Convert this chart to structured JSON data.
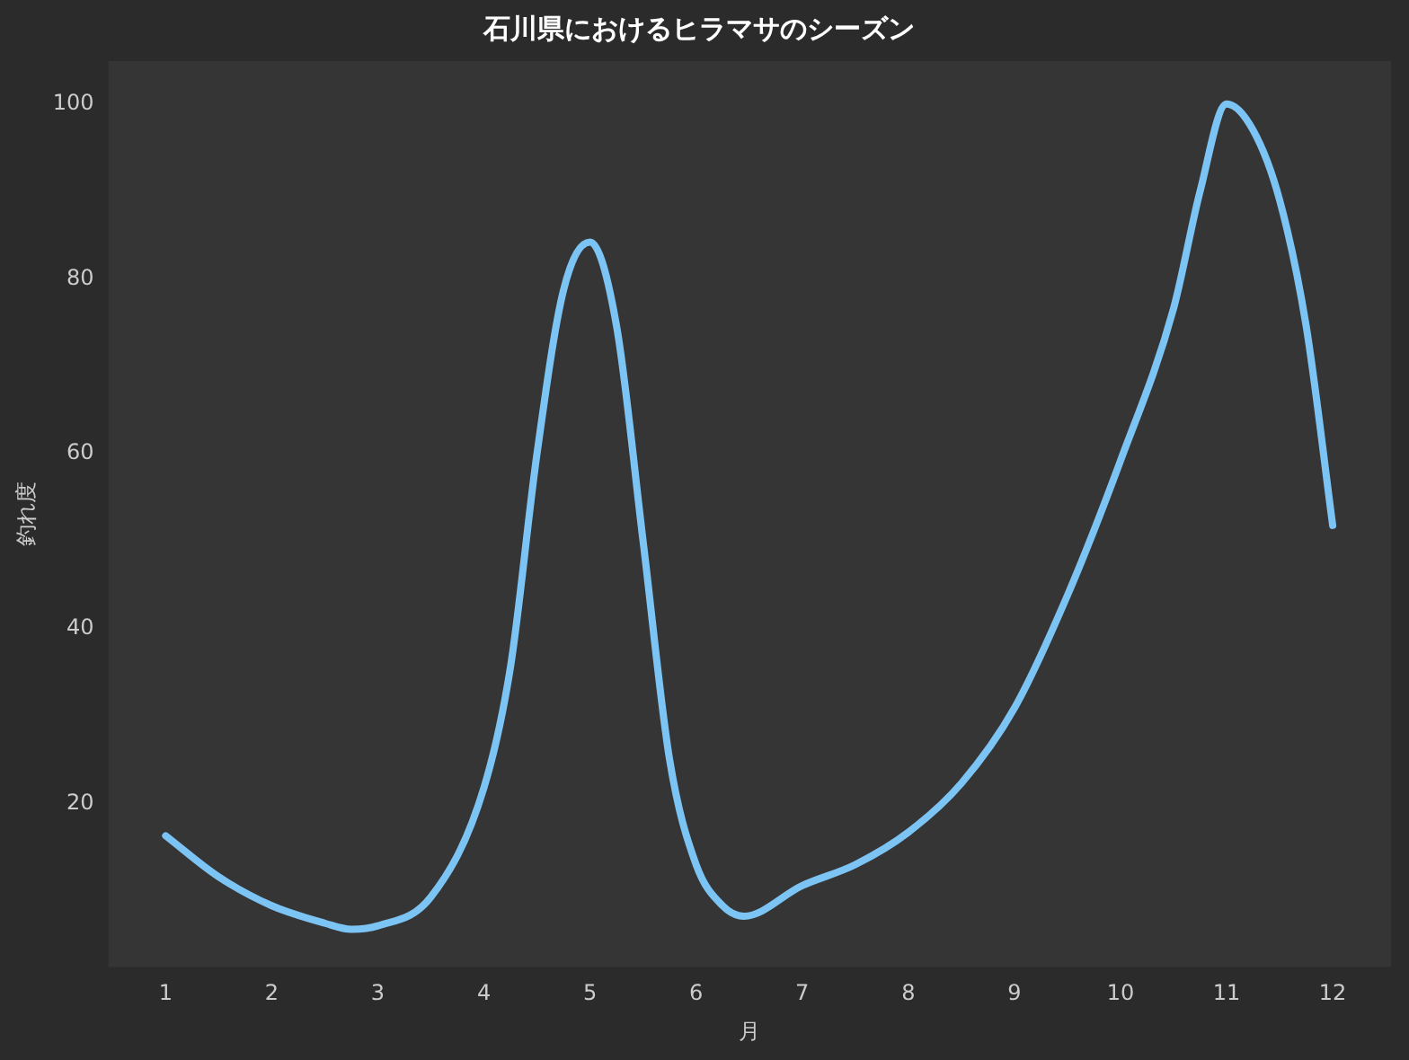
{
  "chart_data": {
    "type": "line",
    "title": "石川県におけるヒラマサのシーズン",
    "xlabel": "月",
    "ylabel": "釣れ度",
    "x": [
      1,
      1.5,
      2,
      2.5,
      2.75,
      3,
      3.5,
      4,
      4.25,
      4.5,
      4.75,
      5,
      5.25,
      5.5,
      5.75,
      6,
      6.25,
      6.45,
      7,
      7.5,
      8,
      8.5,
      9,
      9.5,
      10,
      10.5,
      10.75,
      11,
      11.25,
      11.5,
      11.75,
      12
    ],
    "series": [
      {
        "color": "#7cc4f4",
        "values": [
          16.3,
          11.6,
          8.3,
          6.3,
          5.6,
          6,
          9.3,
          21.8,
          35.6,
          60,
          78.7,
          84.2,
          74.6,
          50,
          25,
          13,
          8.3,
          7.1,
          10.6,
          13,
          16.7,
          22.3,
          30.9,
          43.8,
          59.2,
          76.6,
          90,
          100,
          97,
          89,
          74.6,
          51.8
        ]
      }
    ],
    "xlim": [
      0.46,
      12.55
    ],
    "xticks": [
      1,
      2,
      3,
      4,
      5,
      6,
      7,
      8,
      9,
      10,
      11,
      12
    ],
    "ylim": [
      1.3,
      104.9
    ],
    "yticks": [
      20,
      40,
      60,
      80,
      100
    ],
    "grid": false,
    "legend": false,
    "marker": "none",
    "line_style": "solid"
  }
}
